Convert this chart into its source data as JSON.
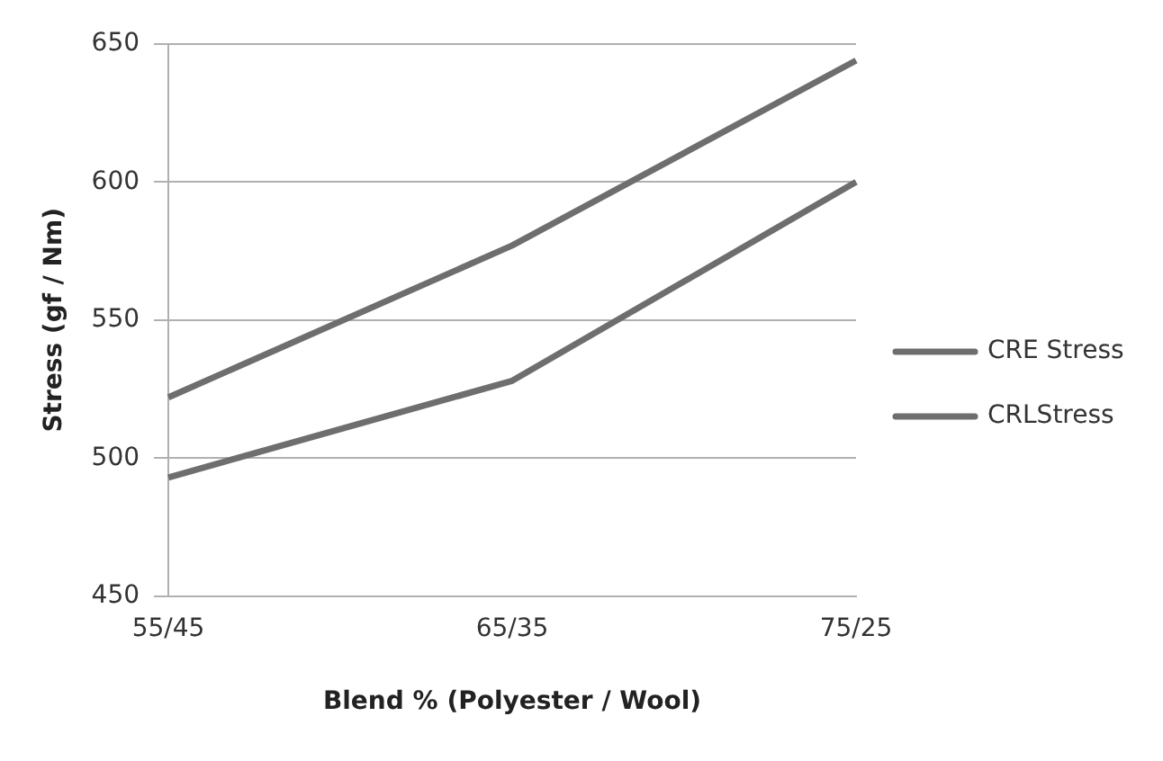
{
  "chart_data": {
    "type": "line",
    "xlabel": "Blend % (Polyester / Wool)",
    "ylabel": "Stress (gf / Nm)",
    "categories": [
      "55/45",
      "65/35",
      "75/25"
    ],
    "series": [
      {
        "name": "CRE Stress",
        "color": "#6e6e6e",
        "values": [
          522,
          577,
          644
        ]
      },
      {
        "name": "CRLStress",
        "color": "#6e6e6e",
        "values": [
          493,
          528,
          600
        ]
      }
    ],
    "ylim": [
      450,
      650
    ],
    "yticks": [
      450,
      500,
      550,
      600,
      650
    ],
    "grid": "y",
    "legend": "right",
    "marker": "none",
    "line_style": "solid"
  }
}
